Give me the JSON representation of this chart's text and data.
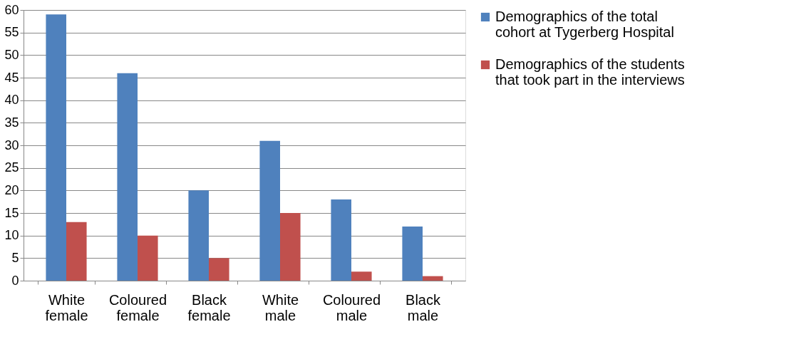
{
  "chart_data": {
    "type": "bar",
    "categories": [
      "White female",
      "Coloured female",
      "Black female",
      "White male",
      "Coloured male",
      "Black male"
    ],
    "series": [
      {
        "name": "Demographics of the total cohort at Tygerberg Hospital",
        "color": "#4f81bd",
        "values": [
          59,
          46,
          20,
          31,
          18,
          12
        ]
      },
      {
        "name": "Demographics of the students that took part in the interviews",
        "color": "#c0504d",
        "values": [
          13,
          10,
          5,
          15,
          2,
          1
        ]
      }
    ],
    "ylim": [
      0,
      60
    ],
    "yticks": [
      0,
      5,
      10,
      15,
      20,
      25,
      30,
      35,
      40,
      45,
      50,
      55,
      60
    ],
    "grid": "y",
    "legend": "right"
  }
}
